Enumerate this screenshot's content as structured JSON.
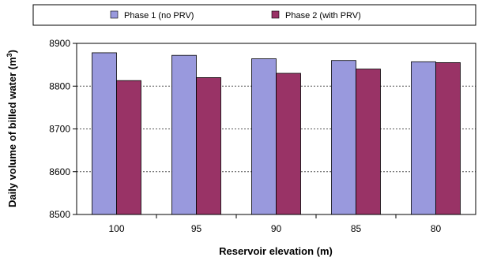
{
  "chart_data": {
    "type": "bar",
    "categories": [
      "100",
      "95",
      "90",
      "85",
      "80"
    ],
    "series": [
      {
        "name": "Phase 1 (no PRV)",
        "values": [
          8878,
          8872,
          8864,
          8860,
          8857
        ],
        "color": "#9999DD"
      },
      {
        "name": "Phase 2 (with PRV)",
        "values": [
          8813,
          8820,
          8830,
          8840,
          8855
        ],
        "color": "#993366"
      }
    ],
    "xlabel": "Reservoir elevation (m)",
    "ylabel_main": "Daily volume of billed water (m",
    "ylabel_sup": "3",
    "ylabel_end": ")",
    "ylim": [
      8500,
      8900
    ],
    "yticks": [
      "8500",
      "8600",
      "8700",
      "8800",
      "8900"
    ],
    "grid": true,
    "legend_position": "top"
  }
}
